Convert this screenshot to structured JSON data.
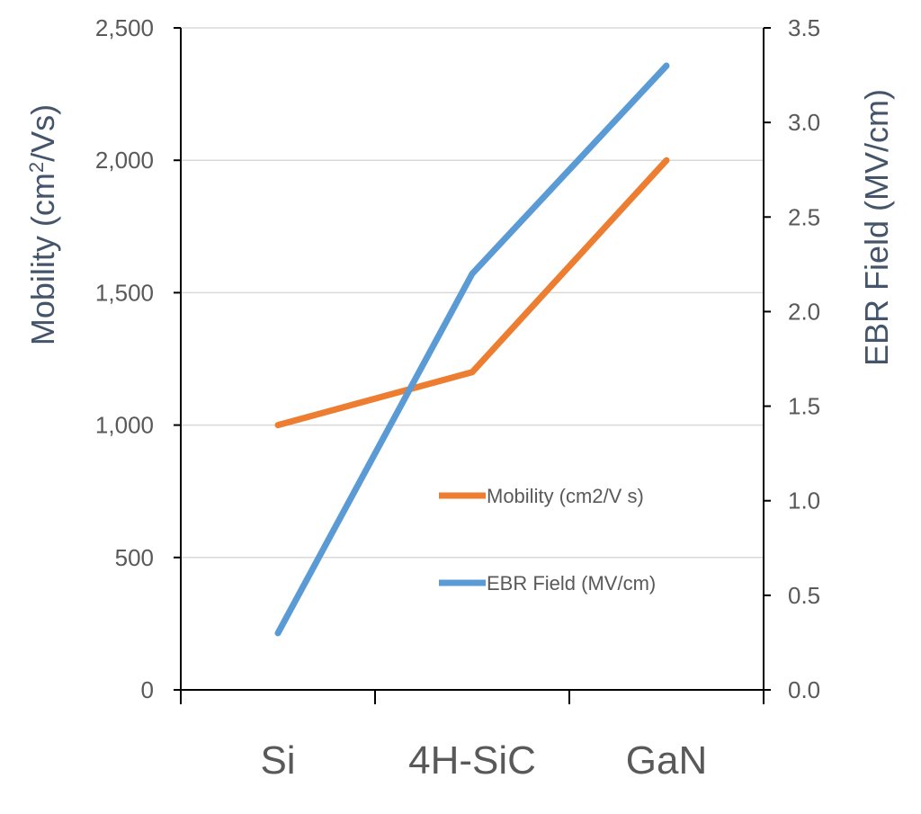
{
  "chart_data": {
    "type": "line",
    "categories": [
      "Si",
      "4H-SiC",
      "GaN"
    ],
    "series": [
      {
        "name": "Mobility (cm2/V s)",
        "axis": "left",
        "color": "#ed7d31",
        "values": [
          1000,
          1200,
          2000
        ]
      },
      {
        "name": "EBR Field (MV/cm)",
        "axis": "right",
        "color": "#5b9bd5",
        "values": [
          0.3,
          2.2,
          3.3
        ]
      }
    ],
    "y_left": {
      "label_main": "Mobility (cm",
      "label_sup": "2",
      "label_end": "/Vs)",
      "ylim": [
        0,
        2500
      ],
      "ticks": [
        "0",
        "500",
        "1,000",
        "1,500",
        "2,000",
        "2,500"
      ],
      "tick_values": [
        0,
        500,
        1000,
        1500,
        2000,
        2500
      ]
    },
    "y_right": {
      "label": "EBR Field (MV/cm)",
      "ylim": [
        0,
        3.5
      ],
      "ticks": [
        "0.0",
        "0.5",
        "1.0",
        "1.5",
        "2.0",
        "2.5",
        "3.0",
        "3.5"
      ],
      "tick_values": [
        0,
        0.5,
        1.0,
        1.5,
        2.0,
        2.5,
        3.0,
        3.5
      ]
    },
    "grid": true,
    "legend_position": "center-right"
  }
}
